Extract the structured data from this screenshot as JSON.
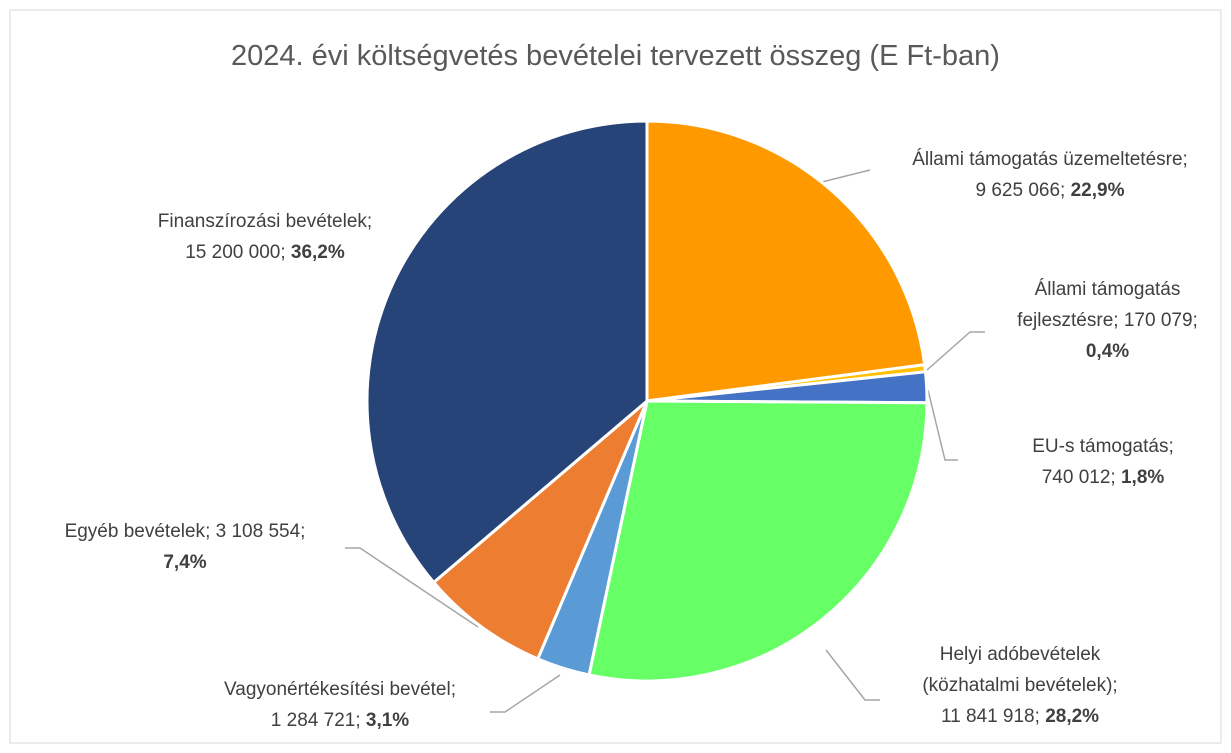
{
  "chart_data": {
    "type": "pie",
    "title": "2024. évi költségvetés bevételei tervezett összeg (E Ft-ban)",
    "categories": [
      "Állami támogatás üzemeltetésre",
      "Állami támogatás fejlesztésre",
      "EU-s támogatás",
      "Helyi adóbevételek (közhatalmi bevételek)",
      "Vagyonértékesítési bevétel",
      "Egyéb bevételek",
      "Finanszírozási bevételek"
    ],
    "values": [
      9625066,
      170079,
      740012,
      11841918,
      1284721,
      3108554,
      15200000
    ],
    "value_labels": [
      "9 625 066",
      "170 079",
      "740 012",
      "11 841 918",
      "1 284 721",
      "3 108 554",
      "15 200 000"
    ],
    "percentages": [
      22.9,
      0.4,
      1.8,
      28.2,
      3.1,
      7.4,
      36.2
    ],
    "percentage_labels": [
      "22,9%",
      "0,4%",
      "1,8%",
      "28,2%",
      "3,1%",
      "7,4%",
      "36,2%"
    ],
    "colors": [
      "#ff9900",
      "#ffc000",
      "#4472c4",
      "#66ff66",
      "#5b9bd5",
      "#ed7d31",
      "#264478"
    ]
  }
}
